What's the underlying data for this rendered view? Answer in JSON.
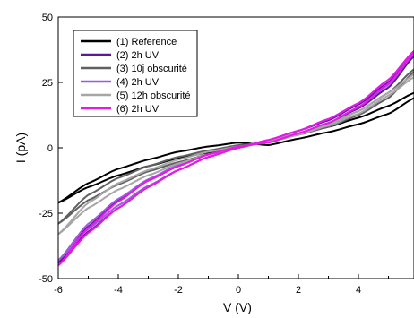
{
  "chart_data": {
    "type": "line",
    "title": "",
    "xlabel": "V (V)",
    "ylabel": "I (pA)",
    "xlim": [
      -6,
      5.85
    ],
    "ylim": [
      -50,
      50
    ],
    "xticks": [
      -6,
      -4,
      -2,
      0,
      2,
      4
    ],
    "yticks": [
      -50,
      -25,
      0,
      25,
      50
    ],
    "legend_position": "top-left",
    "grid": false,
    "series": [
      {
        "name": "(1) Reference",
        "color": "#000000",
        "x": [
          -6,
          -5,
          -4,
          -3,
          -2,
          -1,
          0,
          1,
          2,
          3,
          4,
          5,
          5.85
        ],
        "y_forward": [
          -21,
          -15,
          -10.5,
          -7,
          -4,
          -1.8,
          0.5,
          2.5,
          5,
          8,
          11.5,
          16,
          21
        ],
        "y_reverse": [
          -21,
          -13.5,
          -8,
          -4.5,
          -1.5,
          0.5,
          2,
          1,
          3.5,
          6,
          9,
          13,
          19
        ]
      },
      {
        "name": "(2) 2h UV",
        "color": "#5b189a",
        "x": [
          -6,
          -5,
          -4,
          -3,
          -2,
          -1,
          0,
          1,
          2,
          3,
          4,
          5,
          5.85
        ],
        "y_forward": [
          -44,
          -32,
          -23,
          -15,
          -8.5,
          -3.5,
          0,
          3,
          6.5,
          10.5,
          16.5,
          25,
          36
        ],
        "y_reverse": [
          -44,
          -30,
          -20,
          -12.5,
          -7,
          -2.5,
          0.5,
          2,
          5.5,
          9.5,
          15,
          23,
          35
        ]
      },
      {
        "name": "(3) 10j obscurité",
        "color": "#606060",
        "x": [
          -6,
          -5,
          -4,
          -3,
          -2,
          -1,
          0,
          1,
          2,
          3,
          4,
          5,
          5.85
        ],
        "y_forward": [
          -29,
          -20,
          -14,
          -9,
          -5.5,
          -2.5,
          0,
          2.5,
          5.5,
          9,
          14,
          21,
          30
        ],
        "y_reverse": [
          -29,
          -18,
          -11.5,
          -7,
          -3.5,
          -1,
          1,
          2,
          5,
          8,
          12.5,
          19,
          29
        ]
      },
      {
        "name": "(4) 2h UV",
        "color": "#9c5ddb",
        "x": [
          -6,
          -5,
          -4,
          -3,
          -2,
          -1,
          0,
          1,
          2,
          3,
          4,
          5,
          5.85
        ],
        "y_forward": [
          -43,
          -31,
          -22,
          -14.5,
          -8.5,
          -3.5,
          0,
          3,
          6.5,
          11,
          17,
          26,
          37
        ],
        "y_reverse": [
          -43,
          -29,
          -19.5,
          -12,
          -6.5,
          -2.5,
          0.5,
          2,
          5.5,
          9.5,
          15.5,
          24,
          36
        ]
      },
      {
        "name": "(5) 12h obscurité",
        "color": "#a6a6a6",
        "x": [
          -6,
          -5,
          -4,
          -3,
          -2,
          -1,
          0,
          1,
          2,
          3,
          4,
          5,
          5.85
        ],
        "y_forward": [
          -33,
          -23,
          -16,
          -10.5,
          -6,
          -2.5,
          0,
          2.5,
          5.5,
          9,
          14,
          21,
          28
        ],
        "y_reverse": [
          -33,
          -21,
          -13.5,
          -8.5,
          -4.5,
          -1.5,
          0.5,
          2,
          5,
          8.5,
          13,
          20,
          27
        ]
      },
      {
        "name": "(6) 2h UV",
        "color": "#e619e6",
        "x": [
          -6,
          -5,
          -4,
          -3,
          -2,
          -1,
          0,
          1,
          2,
          3,
          4,
          5,
          5.85
        ],
        "y_forward": [
          -45,
          -32.5,
          -23,
          -15,
          -8.5,
          -3.5,
          0,
          3,
          6.5,
          11,
          17,
          26,
          37
        ],
        "y_reverse": [
          -45,
          -30.5,
          -20.5,
          -12.5,
          -7,
          -2.5,
          0.5,
          2,
          5.5,
          9.5,
          15.5,
          24.5,
          36
        ]
      }
    ]
  }
}
